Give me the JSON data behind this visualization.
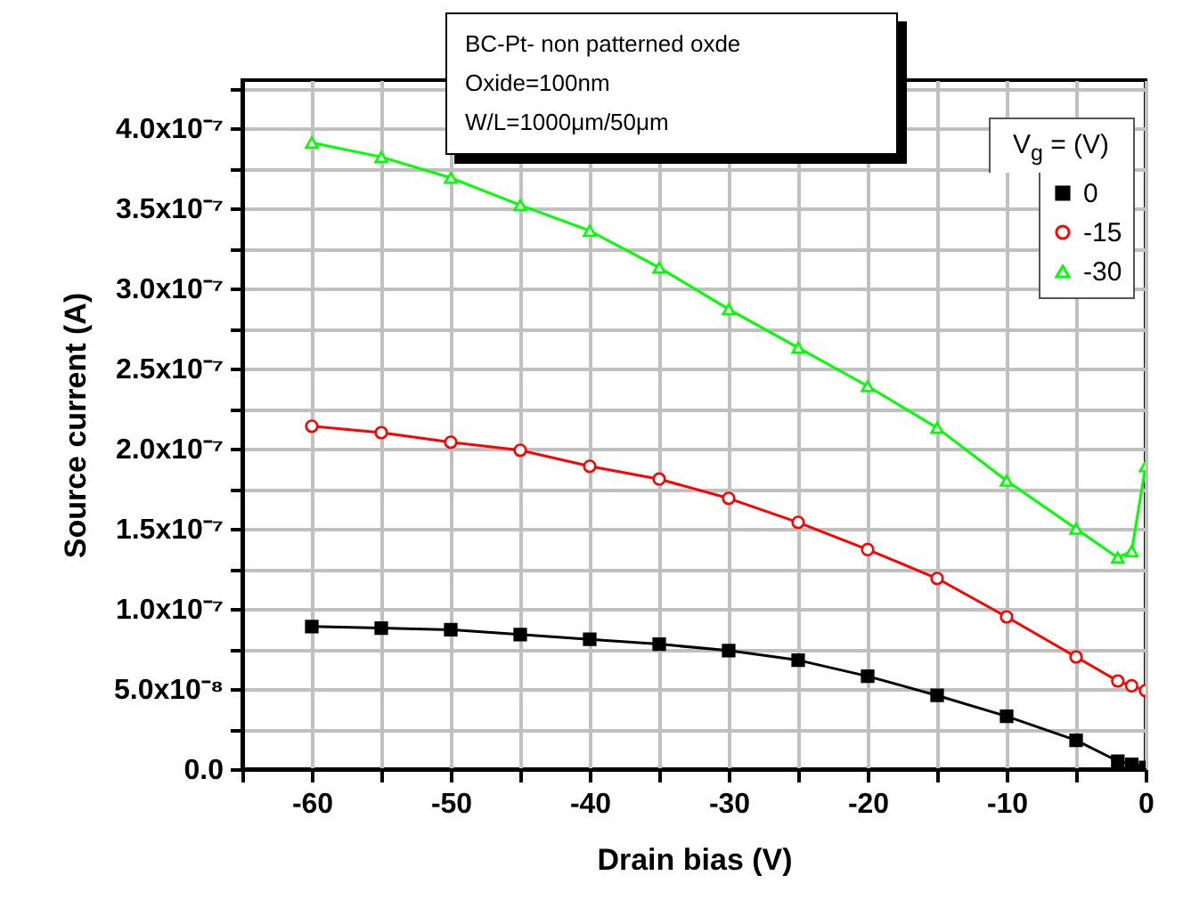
{
  "chart_data": {
    "type": "line",
    "xlabel": "Drain bias (V)",
    "ylabel": "Source current (A)",
    "legend_title": "V$_{g}$ = (V)",
    "annotations": [
      "BC-Pt- non patterned oxde",
      "Oxide=100nm",
      "W/L=1000μm/50μm"
    ],
    "x": [
      -60,
      -55,
      -50,
      -45,
      -40,
      -35,
      -30,
      -25,
      -20,
      -15,
      -10,
      -5,
      -2,
      -1,
      0
    ],
    "series": [
      {
        "name": "0",
        "color": "#000000",
        "marker": "square",
        "values": [
          8.9e-08,
          8.8e-08,
          8.7e-08,
          8.4e-08,
          8.1e-08,
          7.8e-08,
          7.4e-08,
          6.8e-08,
          5.8e-08,
          4.6e-08,
          3.3e-08,
          1.8e-08,
          5e-09,
          3e-09,
          1e-09
        ]
      },
      {
        "name": "-15",
        "color": "#ff0000",
        "marker": "circle",
        "values": [
          2.14e-07,
          2.1e-07,
          2.04e-07,
          1.99e-07,
          1.89e-07,
          1.81e-07,
          1.69e-07,
          1.54e-07,
          1.37e-07,
          1.19e-07,
          9.5e-08,
          7e-08,
          5.5e-08,
          5.2e-08,
          4.9e-08
        ]
      },
      {
        "name": "-30",
        "color": "#00ff00",
        "marker": "triangle",
        "values": [
          3.91e-07,
          3.82e-07,
          3.69e-07,
          3.52e-07,
          3.36e-07,
          3.13e-07,
          2.87e-07,
          2.63e-07,
          2.39e-07,
          2.13e-07,
          1.8e-07,
          1.5e-07,
          1.32e-07,
          1.36e-07,
          1.89e-07
        ]
      }
    ],
    "xlim": [
      -65,
      0
    ],
    "xticks": [
      {
        "value": -65,
        "label": null
      },
      -60,
      {
        "value": -55,
        "label": null
      },
      -50,
      {
        "value": -45,
        "label": null
      },
      -40,
      {
        "value": -35,
        "label": null
      },
      -30,
      {
        "value": -25,
        "label": null
      },
      -20,
      {
        "value": -15,
        "label": null
      },
      -10,
      {
        "value": -5,
        "label": null
      },
      0
    ],
    "ylim": [
      0,
      4.3e-07
    ],
    "yticks": [
      {
        "value": 0,
        "label": "0.0"
      },
      {
        "value": 2.5e-08,
        "label": null
      },
      {
        "value": 5e-08,
        "label": "5.0x10⁻⁸"
      },
      {
        "value": 7.5e-08,
        "label": null
      },
      {
        "value": 1e-07,
        "label": "1.0x10⁻⁷"
      },
      {
        "value": 1.25e-07,
        "label": null
      },
      {
        "value": 1.5e-07,
        "label": "1.5x10⁻⁷"
      },
      {
        "value": 1.75e-07,
        "label": null
      },
      {
        "value": 2e-07,
        "label": "2.0x10⁻⁷"
      },
      {
        "value": 2.25e-07,
        "label": null
      },
      {
        "value": 2.5e-07,
        "label": "2.5x10⁻⁷"
      },
      {
        "value": 2.75e-07,
        "label": null
      },
      {
        "value": 3e-07,
        "label": "3.0x10⁻⁷"
      },
      {
        "value": 3.25e-07,
        "label": null
      },
      {
        "value": 3.5e-07,
        "label": "3.5x10⁻⁷"
      },
      {
        "value": 3.75e-07,
        "label": null
      },
      {
        "value": 4e-07,
        "label": "4.0x10⁻⁷"
      },
      {
        "value": 4.25e-07,
        "label": null
      }
    ],
    "grid": true,
    "legend": "top right",
    "line_style": "solid"
  }
}
